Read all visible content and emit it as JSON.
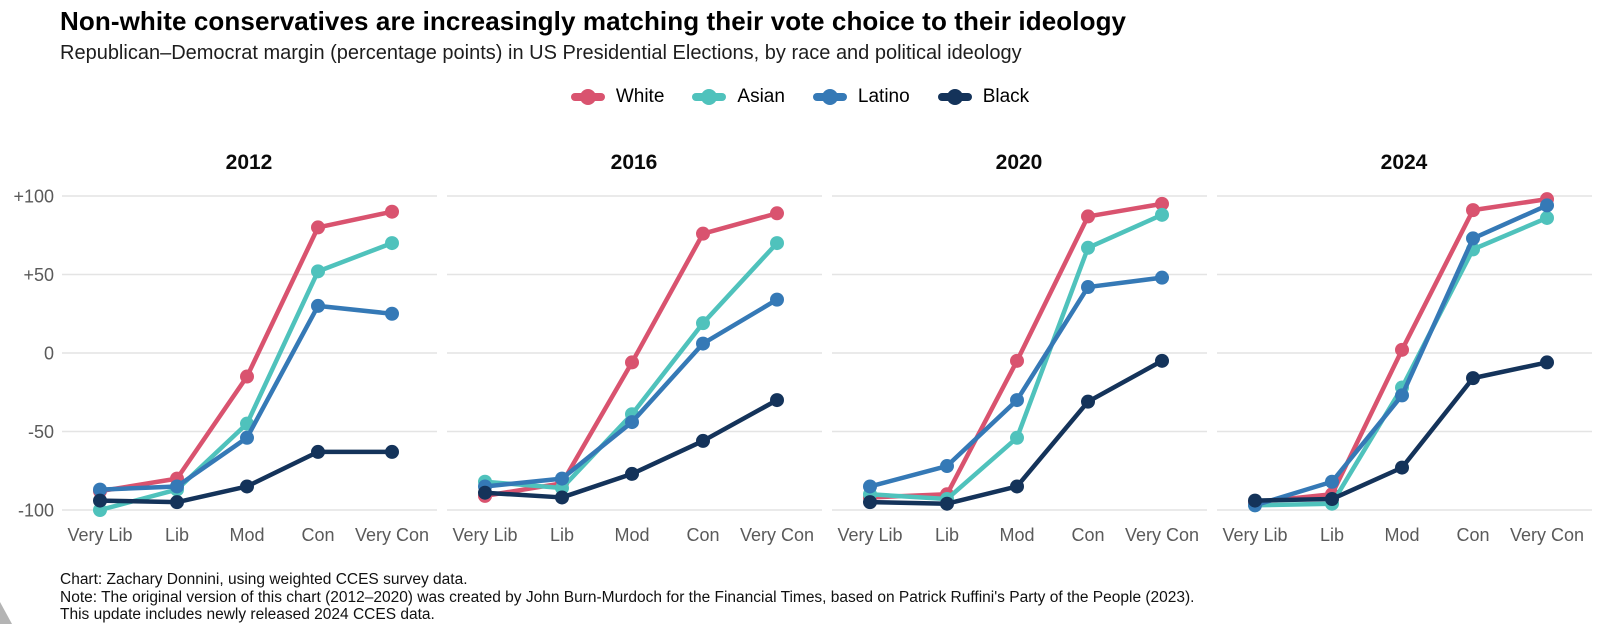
{
  "header": {
    "title": "Non-white conservatives are increasingly matching their vote choice to their ideology",
    "subtitle": "Republican–Democrat margin (percentage points) in US Presidential Elections, by race and political ideology"
  },
  "legend": {
    "items": [
      {
        "label": "White",
        "color": "#d9536f"
      },
      {
        "label": "Asian",
        "color": "#4fc2bc"
      },
      {
        "label": "Latino",
        "color": "#3579b6"
      },
      {
        "label": "Black",
        "color": "#14335a"
      }
    ]
  },
  "chart_data": {
    "type": "line",
    "title": "Non-white conservatives are increasingly matching their vote choice to their ideology",
    "subtitle": "Republican–Democrat margin (percentage points) in US Presidential Elections, by race and political ideology",
    "xlabel": "",
    "ylabel": "Republican–Democrat margin (percentage points)",
    "categories": [
      "Very Lib",
      "Lib",
      "Mod",
      "Con",
      "Very Con"
    ],
    "y_ticks": [
      100,
      50,
      0,
      -50,
      -100
    ],
    "y_tick_labels": [
      "+100",
      "+50",
      "0",
      "-50",
      "-100"
    ],
    "ylim": [
      -100,
      100
    ],
    "grid": "horizontal",
    "legend_position": "top-center",
    "panels": [
      {
        "year": "2012",
        "series": [
          {
            "name": "White",
            "values": [
              -88,
              -80,
              -15,
              80,
              90
            ]
          },
          {
            "name": "Asian",
            "values": [
              -100,
              -87,
              -45,
              52,
              70
            ]
          },
          {
            "name": "Latino",
            "values": [
              -87,
              -85,
              -54,
              30,
              25
            ]
          },
          {
            "name": "Black",
            "values": [
              -94,
              -95,
              -85,
              -63,
              -63
            ]
          }
        ]
      },
      {
        "year": "2016",
        "series": [
          {
            "name": "White",
            "values": [
              -91,
              -83,
              -6,
              76,
              89
            ]
          },
          {
            "name": "Asian",
            "values": [
              -82,
              -86,
              -39,
              19,
              70
            ]
          },
          {
            "name": "Latino",
            "values": [
              -85,
              -80,
              -44,
              6,
              34
            ]
          },
          {
            "name": "Black",
            "values": [
              -89,
              -92,
              -77,
              -56,
              -30
            ]
          }
        ]
      },
      {
        "year": "2020",
        "series": [
          {
            "name": "White",
            "values": [
              -92,
              -90,
              -5,
              87,
              95
            ]
          },
          {
            "name": "Asian",
            "values": [
              -90,
              -93,
              -54,
              67,
              88
            ]
          },
          {
            "name": "Latino",
            "values": [
              -85,
              -72,
              -30,
              42,
              48
            ]
          },
          {
            "name": "Black",
            "values": [
              -95,
              -96,
              -85,
              -31,
              -5
            ]
          }
        ]
      },
      {
        "year": "2024",
        "series": [
          {
            "name": "White",
            "values": [
              -95,
              -90,
              2,
              91,
              98
            ]
          },
          {
            "name": "Asian",
            "values": [
              -97,
              -96,
              -22,
              66,
              86
            ]
          },
          {
            "name": "Latino",
            "values": [
              -97,
              -82,
              -27,
              73,
              94
            ]
          },
          {
            "name": "Black",
            "values": [
              -94,
              -93,
              -73,
              -16,
              -6
            ]
          }
        ]
      }
    ]
  },
  "footer": {
    "credit": "Chart: Zachary Donnini, using weighted CCES survey data.",
    "note": "Note: The original version of this chart (2012–2020) was created by John Burn-Murdoch for the Financial Times, based on Patrick Ruffini's Party of the People (2023).",
    "update": "This update includes newly released 2024 CCES data."
  }
}
